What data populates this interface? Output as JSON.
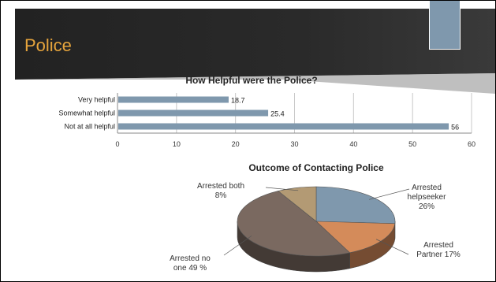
{
  "slide": {
    "title": "Police",
    "colors": {
      "banner": "#161616",
      "title": "#e6a43c",
      "accent": "#7f98ad"
    }
  },
  "chart_data": [
    {
      "type": "bar",
      "orientation": "horizontal",
      "title": "How Helpful were the Police?",
      "categories": [
        "Very helpful",
        "Somewhat helpful",
        "Not at all helpful"
      ],
      "values": [
        18.7,
        25.4,
        56
      ],
      "xlim": [
        0,
        60
      ],
      "xticks": [
        0,
        10,
        20,
        30,
        40,
        50,
        60
      ],
      "grid": true,
      "bar_color": "#7f98ad"
    },
    {
      "type": "pie",
      "style": "3d",
      "title": "Outcome of Contacting Police",
      "slices": [
        {
          "name": "Arrested helpseeker",
          "value": 26,
          "label": [
            "Arrested",
            "helpseeker",
            "26%"
          ],
          "color": "#7f98ad"
        },
        {
          "name": "Arrested Partner",
          "value": 17,
          "label": [
            "Arrested",
            "Partner 17%"
          ],
          "color": "#d48b5a"
        },
        {
          "name": "Arrested no one",
          "value": 49,
          "label": [
            "Arrested no",
            "one 49 %"
          ],
          "color": "#7a6960"
        },
        {
          "name": "Arrested both",
          "value": 8,
          "label": [
            "Arrested both",
            "8%"
          ],
          "color": "#b39a74"
        }
      ]
    }
  ]
}
